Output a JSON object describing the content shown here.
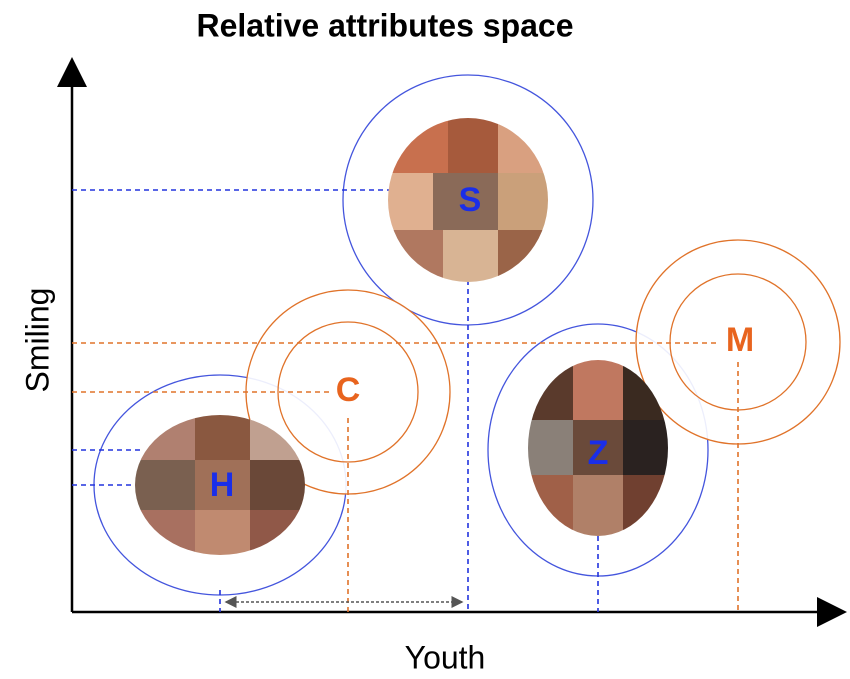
{
  "title": "Relative attributes space",
  "axes": {
    "x_label": "Youth",
    "y_label": "Smiling"
  },
  "nodes": [
    {
      "label": "S"
    },
    {
      "label": "C"
    },
    {
      "label": "H"
    },
    {
      "label": "Z"
    },
    {
      "label": "M"
    }
  ]
}
